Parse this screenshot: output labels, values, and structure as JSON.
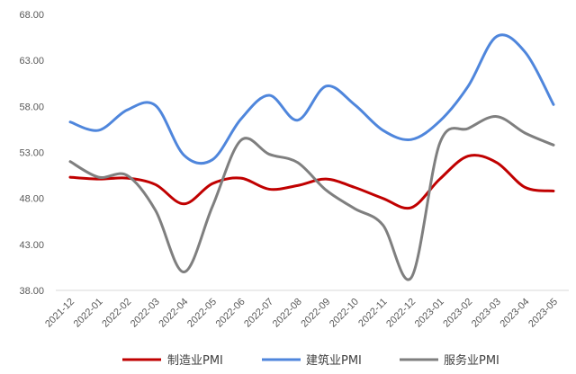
{
  "chart_data": {
    "type": "line",
    "title": "",
    "xlabel": "",
    "ylabel": "",
    "categories": [
      "2021-12",
      "2022-01",
      "2022-02",
      "2022-03",
      "2022-04",
      "2022-05",
      "2022-06",
      "2022-07",
      "2022-08",
      "2022-09",
      "2022-10",
      "2022-11",
      "2022-12",
      "2023-01",
      "2023-02",
      "2023-03",
      "2023-04",
      "2023-05"
    ],
    "series": [
      {
        "name": "制造业PMI",
        "color": "#C00000",
        "values": [
          50.3,
          50.1,
          50.2,
          49.5,
          47.4,
          49.6,
          50.2,
          49.0,
          49.4,
          50.1,
          49.2,
          48.0,
          47.0,
          50.1,
          52.6,
          51.9,
          49.2,
          48.8
        ]
      },
      {
        "name": "建筑业PMI",
        "color": "#4F86DC",
        "values": [
          56.3,
          55.4,
          57.6,
          58.1,
          52.7,
          52.2,
          56.6,
          59.2,
          56.5,
          60.2,
          58.2,
          55.4,
          54.4,
          56.4,
          60.2,
          65.6,
          63.9,
          58.2
        ]
      },
      {
        "name": "服务业PMI",
        "color": "#7F7F7F",
        "values": [
          52.0,
          50.3,
          50.5,
          46.7,
          40.0,
          47.1,
          54.3,
          52.8,
          51.9,
          48.9,
          46.9,
          45.1,
          39.4,
          54.0,
          55.6,
          56.9,
          55.1,
          53.8
        ]
      }
    ],
    "ylim": [
      38,
      68
    ],
    "yticks": [
      "68.00",
      "63.00",
      "58.00",
      "53.00",
      "48.00",
      "43.00",
      "38.00"
    ],
    "grid": false,
    "smooth_lines": true,
    "legend": "bottom"
  }
}
